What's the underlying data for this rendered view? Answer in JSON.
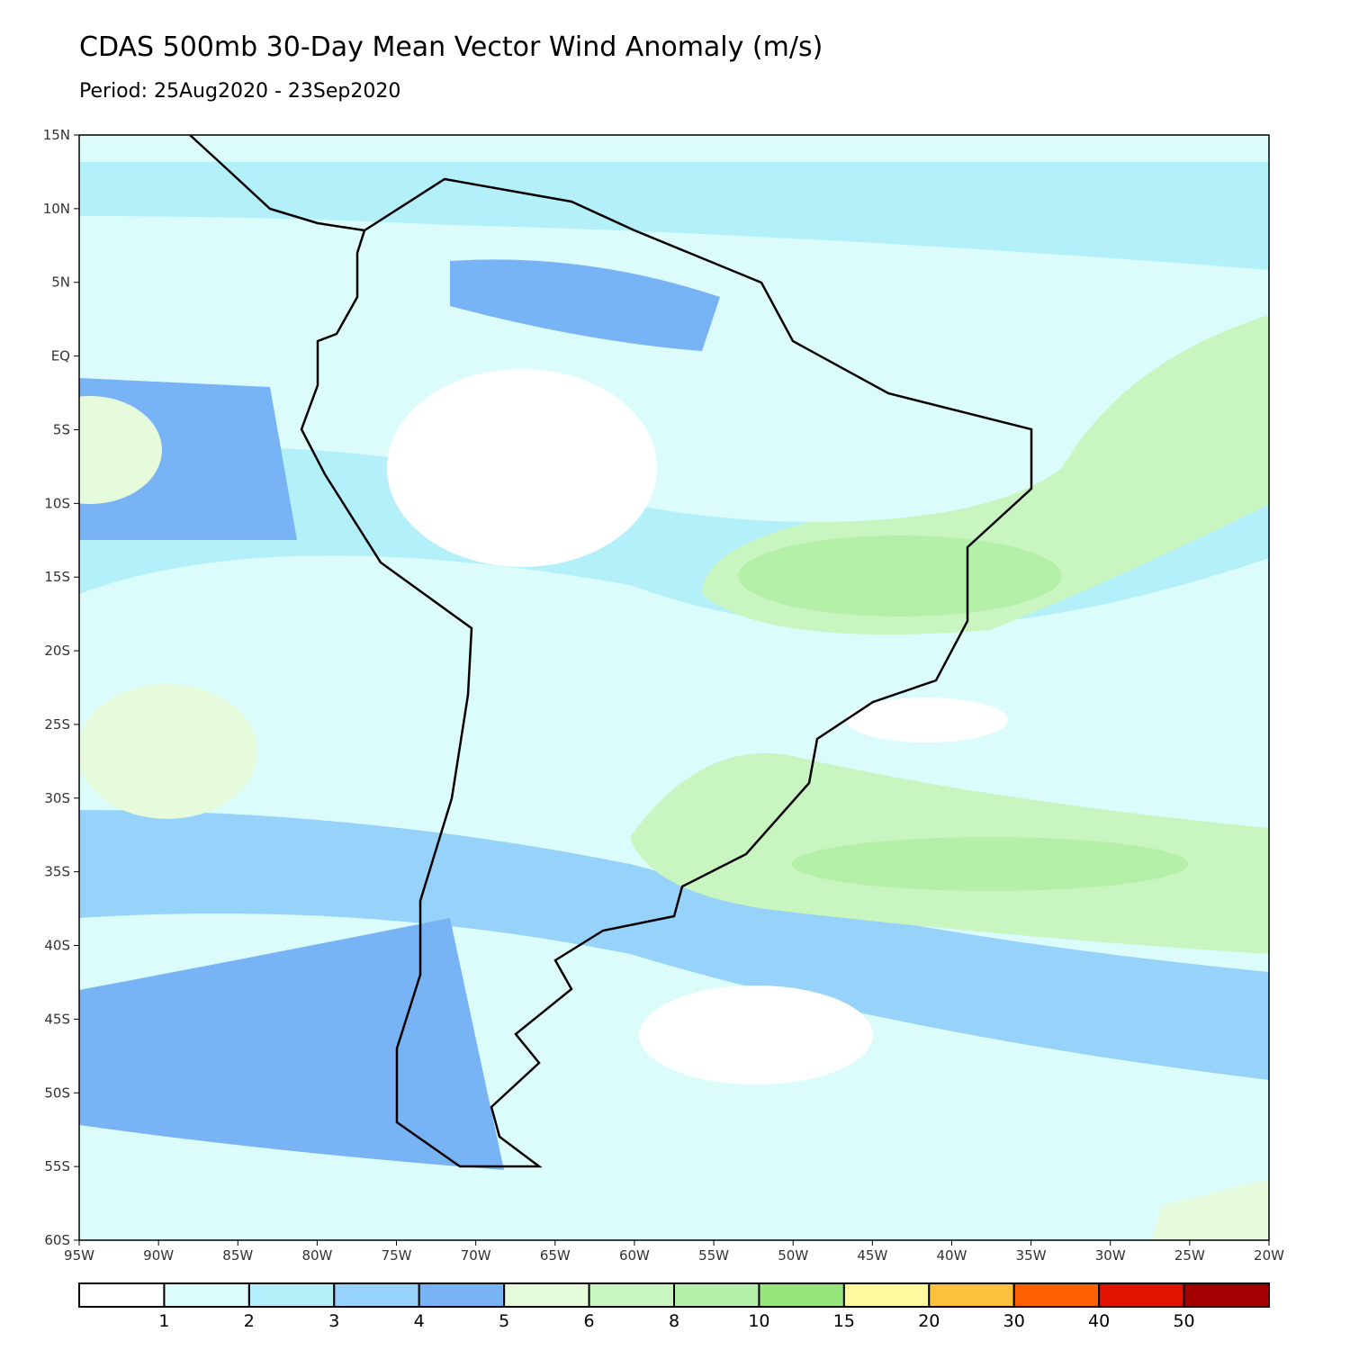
{
  "header": {
    "title": "CDAS 500mb 30-Day Mean Vector Wind Anomaly (m/s)",
    "subtitle": "Period: 25Aug2020 - 23Sep2020"
  },
  "map": {
    "lat_labels": [
      "15N",
      "10N",
      "5N",
      "EQ",
      "5S",
      "10S",
      "15S",
      "20S",
      "25S",
      "30S",
      "35S",
      "40S",
      "45S",
      "50S",
      "55S",
      "60S"
    ],
    "lon_labels": [
      "95W",
      "90W",
      "85W",
      "80W",
      "75W",
      "70W",
      "65W",
      "60W",
      "55W",
      "50W",
      "45W",
      "40W",
      "35W",
      "30W",
      "25W",
      "20W"
    ]
  },
  "legend": {
    "labels": [
      "1",
      "2",
      "3",
      "4",
      "5",
      "6",
      "8",
      "10",
      "15",
      "20",
      "30",
      "40",
      "50"
    ],
    "colors": [
      "#ffffff",
      "#dcfcfc",
      "#b4f0fa",
      "#96d2fa",
      "#78b4f5",
      "#e6fadc",
      "#c8f5c0",
      "#b4f0a8",
      "#96e67c",
      "#fffaa0",
      "#ffc03c",
      "#ff6000",
      "#e11400",
      "#a50000"
    ]
  }
}
